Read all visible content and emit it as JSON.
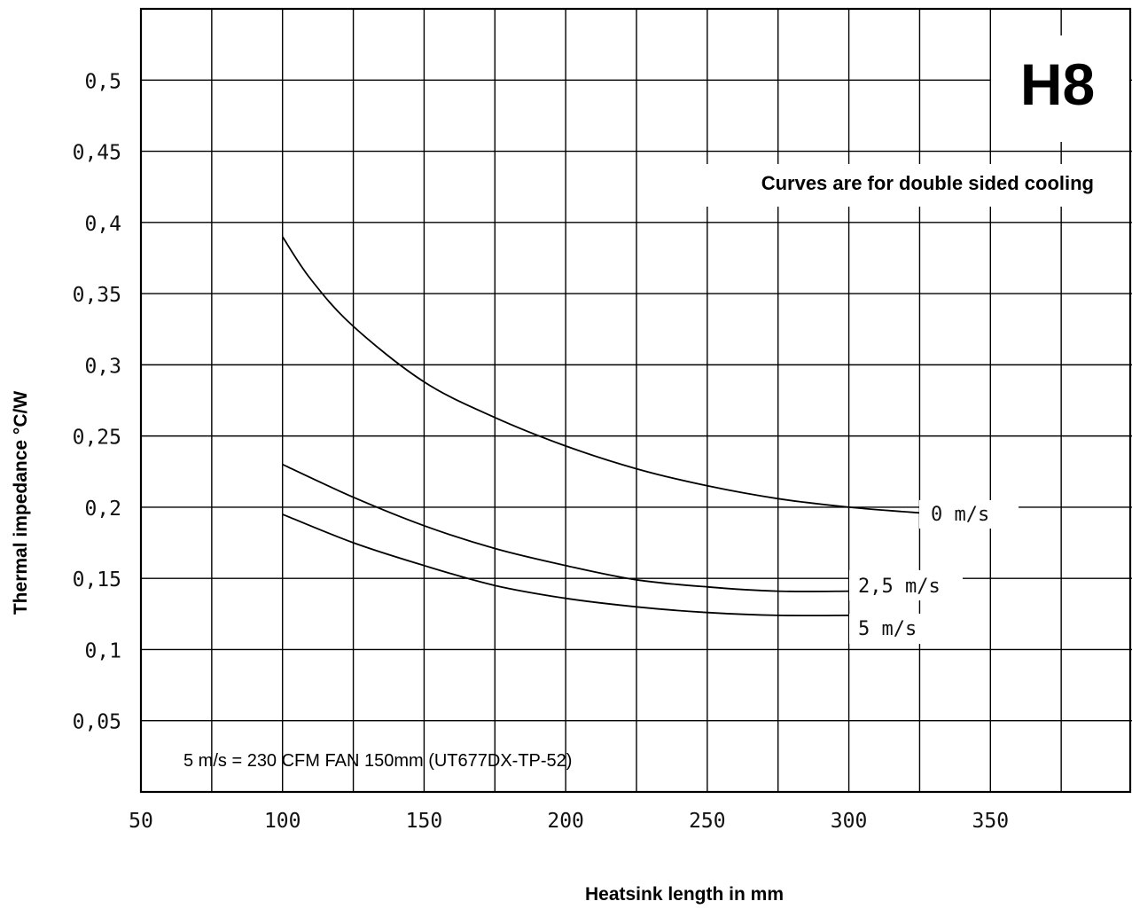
{
  "chart_data": {
    "type": "line",
    "badge": "H8",
    "note": "Curves are for double sided cooling",
    "footnote": "5 m/s = 230 CFM FAN 150mm (UT677DX-TP-52)",
    "xlabel": "Heatsink length in mm",
    "ylabel": "Thermal impedance °C/W",
    "xlim": [
      50,
      400
    ],
    "ylim": [
      0,
      0.55
    ],
    "x_ticks": [
      50,
      100,
      150,
      200,
      250,
      300,
      350
    ],
    "x_tick_labels": [
      "50",
      "100",
      "150",
      "200",
      "250",
      "300",
      "350"
    ],
    "y_ticks": [
      0.05,
      0.1,
      0.15,
      0.2,
      0.25,
      0.3,
      0.35,
      0.4,
      0.45,
      0.5
    ],
    "y_tick_labels": [
      "0,05",
      "0,1",
      "0,15",
      "0,2",
      "0,25",
      "0,3",
      "0,35",
      "0,4",
      "0,45",
      "0,5"
    ],
    "x_grid_step": 25,
    "grid": true,
    "series": [
      {
        "name": "0 m/s",
        "x": [
          100,
          110,
          125,
          150,
          175,
          200,
          225,
          250,
          275,
          300,
          325
        ],
        "y": [
          0.39,
          0.36,
          0.327,
          0.288,
          0.263,
          0.243,
          0.227,
          0.215,
          0.206,
          0.2,
          0.196
        ]
      },
      {
        "name": "2,5 m/s",
        "x": [
          100,
          125,
          150,
          175,
          200,
          225,
          250,
          275,
          300
        ],
        "y": [
          0.23,
          0.207,
          0.187,
          0.171,
          0.159,
          0.149,
          0.144,
          0.141,
          0.141
        ]
      },
      {
        "name": "5 m/s",
        "x": [
          100,
          125,
          150,
          175,
          200,
          225,
          250,
          275,
          300
        ],
        "y": [
          0.195,
          0.175,
          0.159,
          0.145,
          0.136,
          0.13,
          0.126,
          0.124,
          0.124
        ]
      }
    ]
  }
}
